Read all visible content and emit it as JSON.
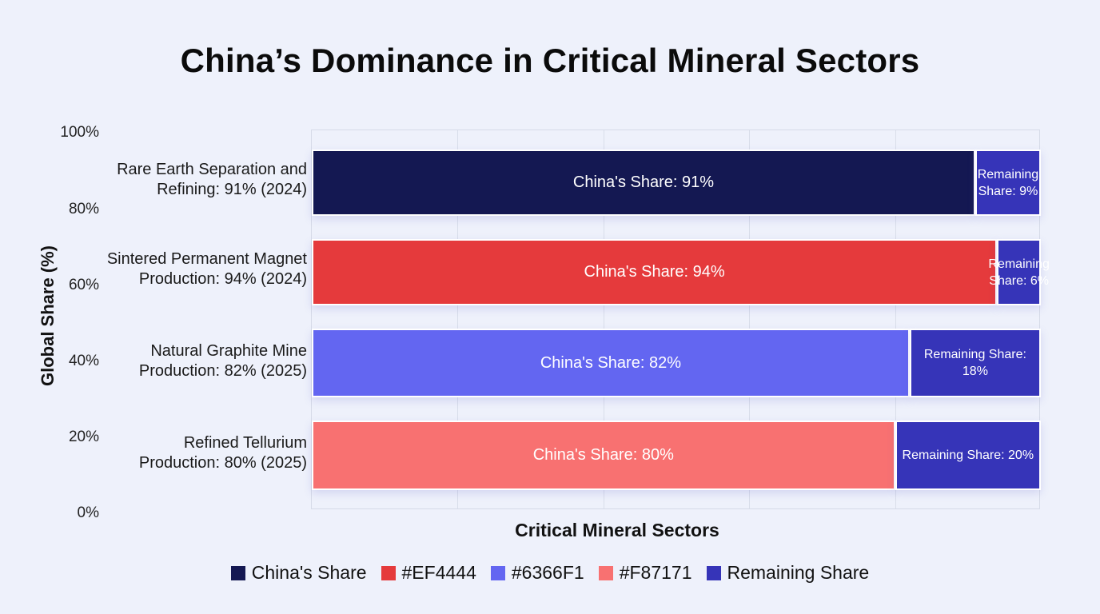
{
  "chart_data": {
    "type": "bar",
    "orientation": "horizontal",
    "stacked": true,
    "title": "China’s Dominance in Critical Mineral Sectors",
    "xlabel": "Critical Mineral Sectors",
    "ylabel": "Global Share (%)",
    "y_ticks": [
      "100%",
      "80%",
      "60%",
      "40%",
      "20%",
      "0%"
    ],
    "xlim": [
      0,
      100
    ],
    "grid": true,
    "legend_position": "bottom",
    "categories": [
      "Rare Earth Separation and Refining: 91% (2024)",
      "Sintered Permanent Magnet Production: 94% (2024)",
      "Natural Graphite Mine Production: 82% (2025)",
      "Refined Tellurium Production: 80% (2025)"
    ],
    "category_lines": [
      [
        "Rare Earth Separation and",
        "Refining: 91% (2024)"
      ],
      [
        "Sintered Permanent Magnet",
        "Production: 94% (2024)"
      ],
      [
        "Natural Graphite Mine",
        "Production: 82% (2025)"
      ],
      [
        "Refined Tellurium",
        "Production: 80% (2025)"
      ]
    ],
    "series": [
      {
        "name": "China's Share",
        "values": [
          91,
          94,
          82,
          80
        ]
      },
      {
        "name": "Remaining Share",
        "values": [
          9,
          6,
          18,
          20
        ]
      }
    ],
    "china_colors": [
      "#141852",
      "#E53A3C",
      "#6366F1",
      "#F87171"
    ],
    "remaining_color": "#3634B8",
    "china_labels": [
      "China's Share: 91%",
      "China's Share: 94%",
      "China's Share: 82%",
      "China's Share: 80%"
    ],
    "remaining_labels": [
      "Remaining Share: 9%",
      "Remaining Share: 6%",
      "Remaining Share: 18%",
      "Remaining Share: 20%"
    ],
    "legend": [
      {
        "label": "China's Share",
        "color": "#141852"
      },
      {
        "label": "#EF4444",
        "color": "#E53A3C"
      },
      {
        "label": "#6366F1",
        "color": "#6366F1"
      },
      {
        "label": "#F87171",
        "color": "#F87171"
      },
      {
        "label": "Remaining Share",
        "color": "#3634B8"
      }
    ]
  }
}
